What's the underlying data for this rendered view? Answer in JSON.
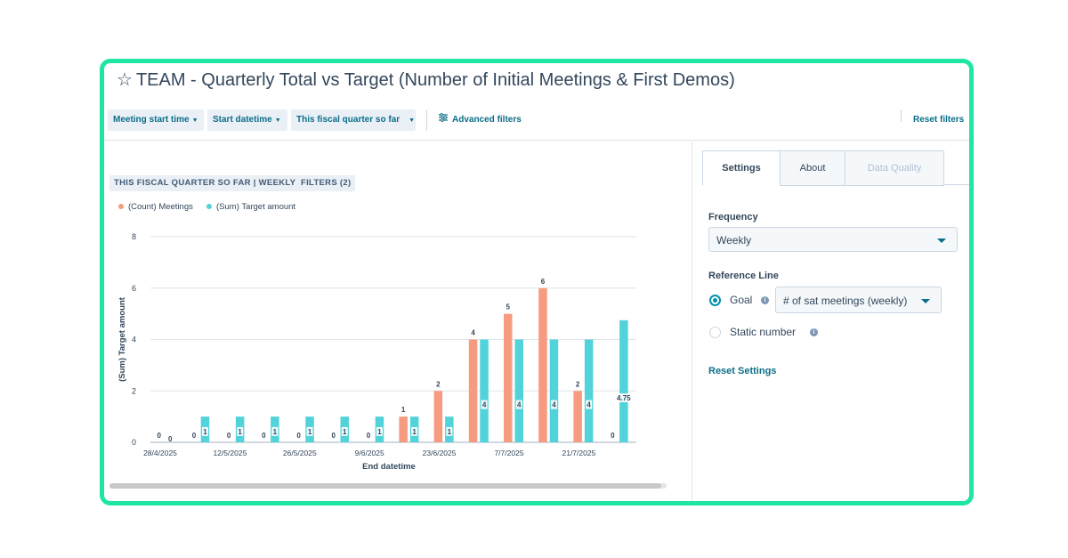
{
  "report": {
    "title": "TEAM - Quarterly Total vs Target (Number of Initial Meetings & First Demos)",
    "star_icon": "star-outline-icon"
  },
  "filters": {
    "chips": [
      {
        "label": "Meeting start time"
      },
      {
        "label": "Start datetime"
      },
      {
        "label": "This fiscal quarter so far"
      }
    ],
    "advanced_label": "Advanced filters",
    "reset_label": "Reset filters"
  },
  "chart_tags": {
    "range": "THIS FISCAL QUARTER SO FAR | WEEKLY",
    "filters": "FILTERS (2)"
  },
  "legend": {
    "items": [
      {
        "label": "(Count) Meetings",
        "color": "#f79b80"
      },
      {
        "label": "(Sum) Target amount",
        "color": "#51d3d9"
      }
    ]
  },
  "chart_data": {
    "type": "bar",
    "xlabel": "End datetime",
    "ylabel": "(Sum) Target amount",
    "ylim": [
      0,
      8
    ],
    "yticks": [
      0,
      2,
      4,
      6,
      8
    ],
    "x_tick_labels": [
      "28/4/2025",
      "12/5/2025",
      "26/5/2025",
      "9/6/2025",
      "23/6/2025",
      "7/7/2025",
      "21/7/2025"
    ],
    "categories": [
      "28/4/2025",
      "5/5/2025",
      "12/5/2025",
      "19/5/2025",
      "26/5/2025",
      "2/6/2025",
      "9/6/2025",
      "16/6/2025",
      "23/6/2025",
      "30/6/2025",
      "7/7/2025",
      "14/7/2025",
      "21/7/2025",
      "28/7/2025"
    ],
    "series": [
      {
        "name": "(Count) Meetings",
        "color": "#f79b80",
        "values": [
          0,
          0,
          0,
          0,
          0,
          0,
          0,
          1,
          2,
          4,
          5,
          6,
          2,
          0
        ],
        "labels": [
          "0",
          "0",
          "0",
          "0",
          "0",
          "0",
          "0",
          "1",
          "2",
          "4",
          "5",
          "6",
          "2",
          "0"
        ]
      },
      {
        "name": "(Sum) Target amount",
        "color": "#51d3d9",
        "values": [
          0,
          1,
          1,
          1,
          1,
          1,
          1,
          1,
          1,
          4,
          4,
          4,
          4,
          4.75
        ],
        "labels": [
          "0",
          "1",
          "1",
          "1",
          "1",
          "1",
          "1",
          "1",
          "1",
          "4",
          "4",
          "4",
          "4",
          "4.75"
        ]
      }
    ]
  },
  "panel": {
    "tabs": [
      {
        "label": "Settings",
        "state": "active"
      },
      {
        "label": "About",
        "state": "normal"
      },
      {
        "label": "Data Quality",
        "state": "disabled"
      }
    ],
    "frequency_label": "Frequency",
    "frequency_value": "Weekly",
    "reference_label": "Reference Line",
    "goal_label": "Goal",
    "goal_select_value": "# of sat meetings (weekly)",
    "static_label": "Static number",
    "reset_settings_label": "Reset Settings",
    "accent_color": "#0091ae"
  }
}
